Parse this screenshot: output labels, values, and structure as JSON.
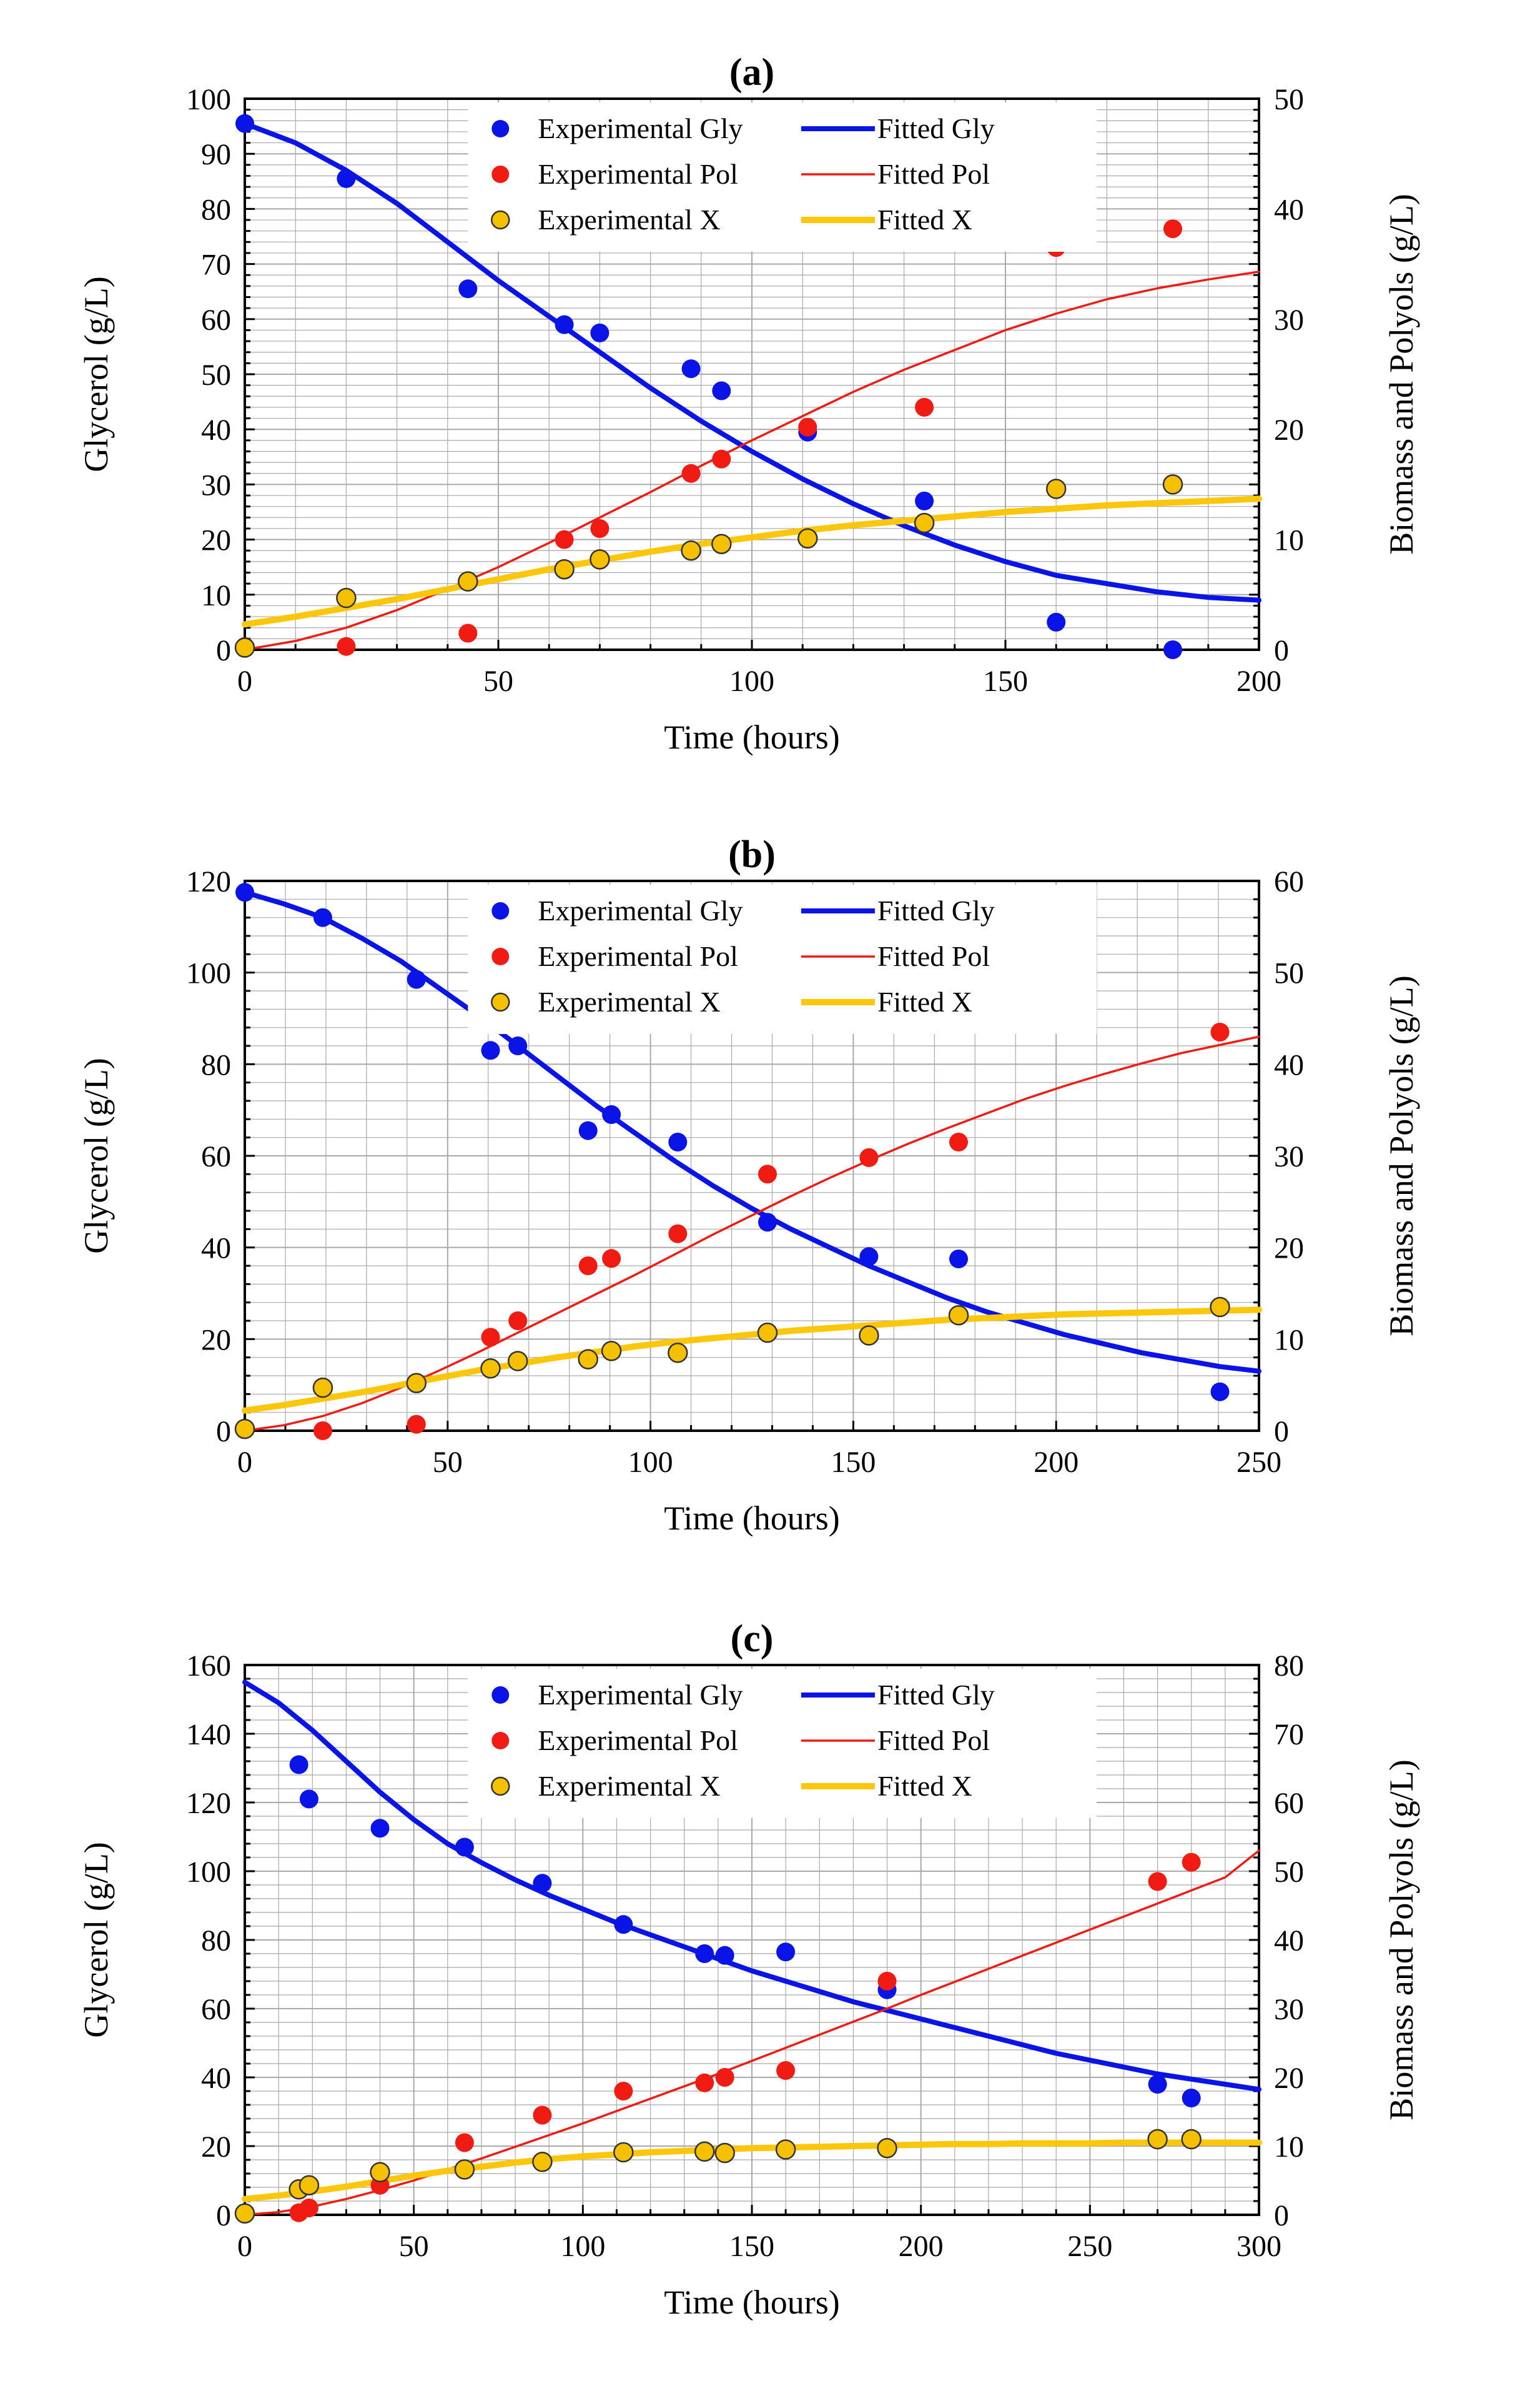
{
  "colors": {
    "gly": "#0a14e6",
    "pol": "#f01c14",
    "x_line": "#fcc70a",
    "x_fill": "#f5c000",
    "grid": "#a9a9a9",
    "axis": "#000000"
  },
  "chart_data": [
    {
      "type": "scatter",
      "panel": "(a)",
      "title": "(a)",
      "xlabel": "Time (hours)",
      "ylabel": "Glycerol (g/L)",
      "y2label": "Biomass  and Polyols (g/L)",
      "xlim": [
        0,
        200
      ],
      "xticks": [
        "0",
        "50",
        "100",
        "150",
        "200"
      ],
      "ylim": [
        0,
        100
      ],
      "yticks": [
        "0",
        "10",
        "20",
        "30",
        "40",
        "50",
        "60",
        "70",
        "80",
        "90",
        "100"
      ],
      "y2lim": [
        0,
        50
      ],
      "y2ticks": [
        "0",
        "10",
        "20",
        "30",
        "40",
        "50"
      ],
      "legend": [
        "Experimental Gly",
        "Fitted Gly",
        "Experimental Pol",
        "Fitted Pol",
        "Experimental X",
        "Fitted X"
      ],
      "series": [
        {
          "name": "Experimental Gly",
          "kind": "points",
          "axis": "left",
          "color": "gly",
          "x": [
            0,
            20,
            44,
            63,
            70,
            88,
            94,
            111,
            134,
            160,
            183
          ],
          "y": [
            95.5,
            85.5,
            65.5,
            59,
            57.5,
            51,
            47,
            39.5,
            27,
            5,
            0
          ]
        },
        {
          "name": "Fitted Gly",
          "kind": "line",
          "axis": "left",
          "color": "gly",
          "width": 8,
          "x": [
            0,
            10,
            20,
            30,
            40,
            50,
            60,
            70,
            80,
            90,
            100,
            110,
            120,
            130,
            140,
            150,
            160,
            170,
            180,
            190,
            200
          ],
          "y": [
            95.5,
            92,
            87,
            81,
            74,
            67,
            60.5,
            54,
            47.5,
            41.5,
            36,
            31,
            26.5,
            22.5,
            19,
            16,
            13.5,
            12,
            10.5,
            9.5,
            9
          ]
        },
        {
          "name": "Experimental Pol",
          "kind": "points",
          "axis": "right",
          "color": "pol",
          "x": [
            0,
            20,
            44,
            63,
            70,
            88,
            94,
            111,
            134,
            160,
            183
          ],
          "y": [
            0.3,
            0.3,
            1.5,
            10,
            11,
            16,
            17.3,
            20.2,
            22,
            36.5,
            38.2
          ]
        },
        {
          "name": "Fitted Pol",
          "kind": "line",
          "axis": "right",
          "color": "pol",
          "width": 3.5,
          "x": [
            0,
            10,
            20,
            30,
            40,
            50,
            60,
            70,
            80,
            90,
            100,
            110,
            120,
            130,
            140,
            150,
            160,
            170,
            180,
            190,
            200
          ],
          "y": [
            0,
            0.8,
            2,
            3.6,
            5.5,
            7.5,
            9.7,
            12,
            14.3,
            16.7,
            19,
            21.2,
            23.4,
            25.4,
            27.2,
            29,
            30.5,
            31.8,
            32.8,
            33.6,
            34.3
          ]
        },
        {
          "name": "Experimental X",
          "kind": "points",
          "axis": "right",
          "color": "x_fill",
          "outlined": true,
          "x": [
            0,
            20,
            44,
            63,
            70,
            88,
            94,
            111,
            134,
            160,
            183
          ],
          "y": [
            0.2,
            4.7,
            6.2,
            7.3,
            8.2,
            9,
            9.6,
            10.1,
            11.5,
            14.6,
            15
          ]
        },
        {
          "name": "Fitted X",
          "kind": "line",
          "axis": "right",
          "color": "x_line",
          "width": 10,
          "x": [
            0,
            10,
            20,
            30,
            40,
            50,
            60,
            70,
            80,
            90,
            100,
            110,
            120,
            130,
            140,
            150,
            160,
            170,
            180,
            190,
            200
          ],
          "y": [
            2.3,
            3,
            3.8,
            4.6,
            5.5,
            6.4,
            7.3,
            8.1,
            8.9,
            9.6,
            10.2,
            10.8,
            11.3,
            11.7,
            12.1,
            12.5,
            12.8,
            13.1,
            13.3,
            13.5,
            13.7
          ]
        }
      ]
    },
    {
      "type": "scatter",
      "panel": "(b)",
      "title": "(b)",
      "xlabel": "Time (hours)",
      "ylabel": "Glycerol (g/L)",
      "y2label": "Biomass and Polyols (g/L)",
      "xlim": [
        0,
        260
      ],
      "xticks": [
        "0",
        "50",
        "100",
        "150",
        "200",
        "250"
      ],
      "ylim": [
        0,
        120
      ],
      "yticks": [
        "0",
        "20",
        "40",
        "60",
        "80",
        "100",
        "120"
      ],
      "y2lim": [
        0,
        60
      ],
      "y2ticks": [
        "0",
        "10",
        "20",
        "30",
        "40",
        "50",
        "60"
      ],
      "legend": [
        "Experimental Gly",
        "Fitted Gly",
        "Experimental Pol",
        "Fitted Pol",
        "Experimental X",
        "Fitted X"
      ],
      "series": [
        {
          "name": "Experimental Gly",
          "kind": "points",
          "axis": "left",
          "color": "gly",
          "x": [
            0,
            20,
            44,
            63,
            70,
            88,
            94,
            111,
            134,
            160,
            183,
            250
          ],
          "y": [
            117.5,
            112,
            98.5,
            83,
            84,
            65.5,
            69,
            63,
            45.5,
            38,
            37.5,
            8.5
          ]
        },
        {
          "name": "Fitted Gly",
          "kind": "line",
          "axis": "left",
          "color": "gly",
          "width": 8,
          "x": [
            0,
            10,
            20,
            30,
            40,
            50,
            60,
            70,
            80,
            90,
            100,
            110,
            120,
            130,
            140,
            150,
            160,
            170,
            180,
            190,
            200,
            210,
            220,
            230,
            240,
            250,
            260
          ],
          "y": [
            117.5,
            115,
            112,
            107.5,
            102.5,
            96.5,
            90.5,
            84,
            77.5,
            71,
            65,
            59,
            53.5,
            48.5,
            44,
            40,
            36,
            32.5,
            29,
            26,
            23.5,
            21,
            19,
            17,
            15.5,
            14,
            13
          ]
        },
        {
          "name": "Experimental Pol",
          "kind": "points",
          "axis": "right",
          "color": "pol",
          "x": [
            20,
            44,
            63,
            70,
            88,
            94,
            111,
            134,
            160,
            183,
            250
          ],
          "y": [
            0,
            0.7,
            10.2,
            12,
            18,
            18.8,
            21.5,
            28,
            29.8,
            31.5,
            43.5
          ]
        },
        {
          "name": "Fitted Pol",
          "kind": "line",
          "axis": "right",
          "color": "pol",
          "width": 3.5,
          "x": [
            0,
            10,
            20,
            30,
            40,
            50,
            60,
            70,
            80,
            90,
            100,
            110,
            120,
            130,
            140,
            150,
            160,
            170,
            180,
            190,
            200,
            210,
            220,
            230,
            240,
            250,
            260
          ],
          "y": [
            0,
            0.6,
            1.6,
            3,
            4.7,
            6.6,
            8.6,
            10.7,
            12.8,
            14.9,
            17,
            19.2,
            21.4,
            23.5,
            25.6,
            27.6,
            29.5,
            31.3,
            33,
            34.6,
            36.2,
            37.6,
            38.9,
            40.1,
            41.2,
            42.1,
            43
          ]
        },
        {
          "name": "Experimental X",
          "kind": "points",
          "axis": "right",
          "color": "x_fill",
          "outlined": true,
          "x": [
            0,
            20,
            44,
            63,
            70,
            88,
            94,
            111,
            134,
            160,
            183,
            250
          ],
          "y": [
            0.2,
            4.7,
            5.2,
            6.8,
            7.6,
            7.8,
            8.7,
            8.5,
            10.7,
            10.4,
            12.6,
            13.5
          ]
        },
        {
          "name": "Fitted X",
          "kind": "line",
          "axis": "right",
          "color": "x_line",
          "width": 10,
          "x": [
            0,
            10,
            20,
            30,
            40,
            50,
            60,
            70,
            80,
            90,
            100,
            110,
            120,
            130,
            140,
            150,
            160,
            170,
            180,
            190,
            200,
            210,
            220,
            230,
            240,
            250,
            260
          ],
          "y": [
            2.2,
            2.8,
            3.5,
            4.2,
            5,
            5.8,
            6.6,
            7.3,
            8,
            8.6,
            9.2,
            9.7,
            10.1,
            10.5,
            10.9,
            11.2,
            11.5,
            11.8,
            12.1,
            12.3,
            12.5,
            12.7,
            12.8,
            12.9,
            13,
            13.1,
            13.2
          ]
        }
      ]
    },
    {
      "type": "scatter",
      "panel": "(c)",
      "title": "(c)",
      "xlabel": "Time (hours)",
      "ylabel": "Glycerol (g/L)",
      "y2label": "Biomass and Polyols (g/L)",
      "xlim": [
        0,
        300
      ],
      "xticks": [
        "0",
        "50",
        "100",
        "150",
        "200",
        "250",
        "300"
      ],
      "ylim": [
        0,
        160
      ],
      "yticks": [
        "0",
        "20",
        "40",
        "60",
        "80",
        "100",
        "120",
        "140",
        "160"
      ],
      "y2lim": [
        0,
        80
      ],
      "y2ticks": [
        "0",
        "10",
        "20",
        "30",
        "40",
        "50",
        "60",
        "70",
        "80"
      ],
      "legend": [
        "Experimental Gly",
        "Fitted Gly",
        "Experimental Pol",
        "Fitted Pol",
        "Experimental X",
        "Fitted X"
      ],
      "series": [
        {
          "name": "Experimental Gly",
          "kind": "points",
          "axis": "left",
          "color": "gly",
          "x": [
            16,
            19,
            40,
            65,
            88,
            112,
            136,
            142,
            160,
            190,
            270,
            280
          ],
          "y": [
            131,
            121,
            112.5,
            107,
            96.5,
            84.5,
            76,
            75.5,
            76.5,
            65.5,
            38,
            34
          ]
        },
        {
          "name": "Fitted Gly",
          "kind": "line",
          "axis": "left",
          "color": "gly",
          "width": 8,
          "x": [
            0,
            10,
            20,
            30,
            40,
            50,
            60,
            70,
            80,
            90,
            100,
            110,
            120,
            130,
            140,
            150,
            160,
            170,
            180,
            190,
            200,
            210,
            220,
            230,
            240,
            250,
            260,
            270,
            280,
            290,
            300
          ],
          "y": [
            155,
            149,
            141,
            132,
            123,
            115,
            108,
            102.5,
            97.5,
            93,
            89,
            85,
            81.5,
            78,
            74.5,
            71,
            68,
            65,
            62,
            59.5,
            57,
            54.5,
            52,
            49.5,
            47,
            45,
            43,
            41,
            39.5,
            38,
            36.5
          ]
        },
        {
          "name": "Experimental Pol",
          "kind": "points",
          "axis": "right",
          "color": "pol",
          "x": [
            16,
            19,
            40,
            65,
            88,
            112,
            136,
            142,
            160,
            190,
            270,
            280
          ],
          "y": [
            0.3,
            1,
            4.3,
            10.5,
            14.5,
            18,
            19.2,
            20,
            21,
            34,
            48.5,
            51.3
          ]
        },
        {
          "name": "Fitted Pol",
          "kind": "line",
          "axis": "right",
          "color": "pol",
          "width": 3.5,
          "x": [
            0,
            10,
            20,
            30,
            40,
            50,
            60,
            70,
            80,
            90,
            100,
            110,
            120,
            130,
            140,
            150,
            160,
            170,
            180,
            190,
            200,
            210,
            220,
            230,
            240,
            250,
            260,
            270,
            280,
            290,
            300
          ],
          "y": [
            0,
            0.4,
            1.2,
            2.3,
            3.6,
            5,
            6.6,
            8.2,
            9.9,
            11.6,
            13.3,
            15.1,
            16.9,
            18.7,
            20.5,
            22.4,
            24.3,
            26.2,
            28.1,
            30,
            32,
            33.9,
            35.8,
            37.7,
            39.6,
            41.5,
            43.4,
            45.3,
            47.2,
            49.1,
            53
          ]
        },
        {
          "name": "Experimental X",
          "kind": "points",
          "axis": "right",
          "color": "x_fill",
          "outlined": true,
          "x": [
            0,
            16,
            19,
            40,
            65,
            88,
            112,
            136,
            142,
            160,
            190,
            270,
            280
          ],
          "y": [
            0.2,
            3.7,
            4.3,
            6.2,
            6.6,
            7.7,
            9.1,
            9.2,
            9,
            9.5,
            9.7,
            11,
            11
          ]
        },
        {
          "name": "Fitted X",
          "kind": "line",
          "axis": "right",
          "color": "x_line",
          "width": 10,
          "x": [
            0,
            10,
            20,
            30,
            40,
            50,
            60,
            70,
            80,
            90,
            100,
            110,
            120,
            130,
            140,
            150,
            160,
            170,
            180,
            190,
            200,
            210,
            220,
            230,
            240,
            250,
            260,
            270,
            280,
            290,
            300
          ],
          "y": [
            2.3,
            2.8,
            3.4,
            4.1,
            4.9,
            5.7,
            6.4,
            7,
            7.6,
            8.1,
            8.5,
            8.8,
            9.1,
            9.3,
            9.5,
            9.7,
            9.8,
            9.9,
            10,
            10.1,
            10.2,
            10.3,
            10.3,
            10.4,
            10.4,
            10.4,
            10.5,
            10.5,
            10.5,
            10.5,
            10.5
          ]
        }
      ]
    }
  ]
}
